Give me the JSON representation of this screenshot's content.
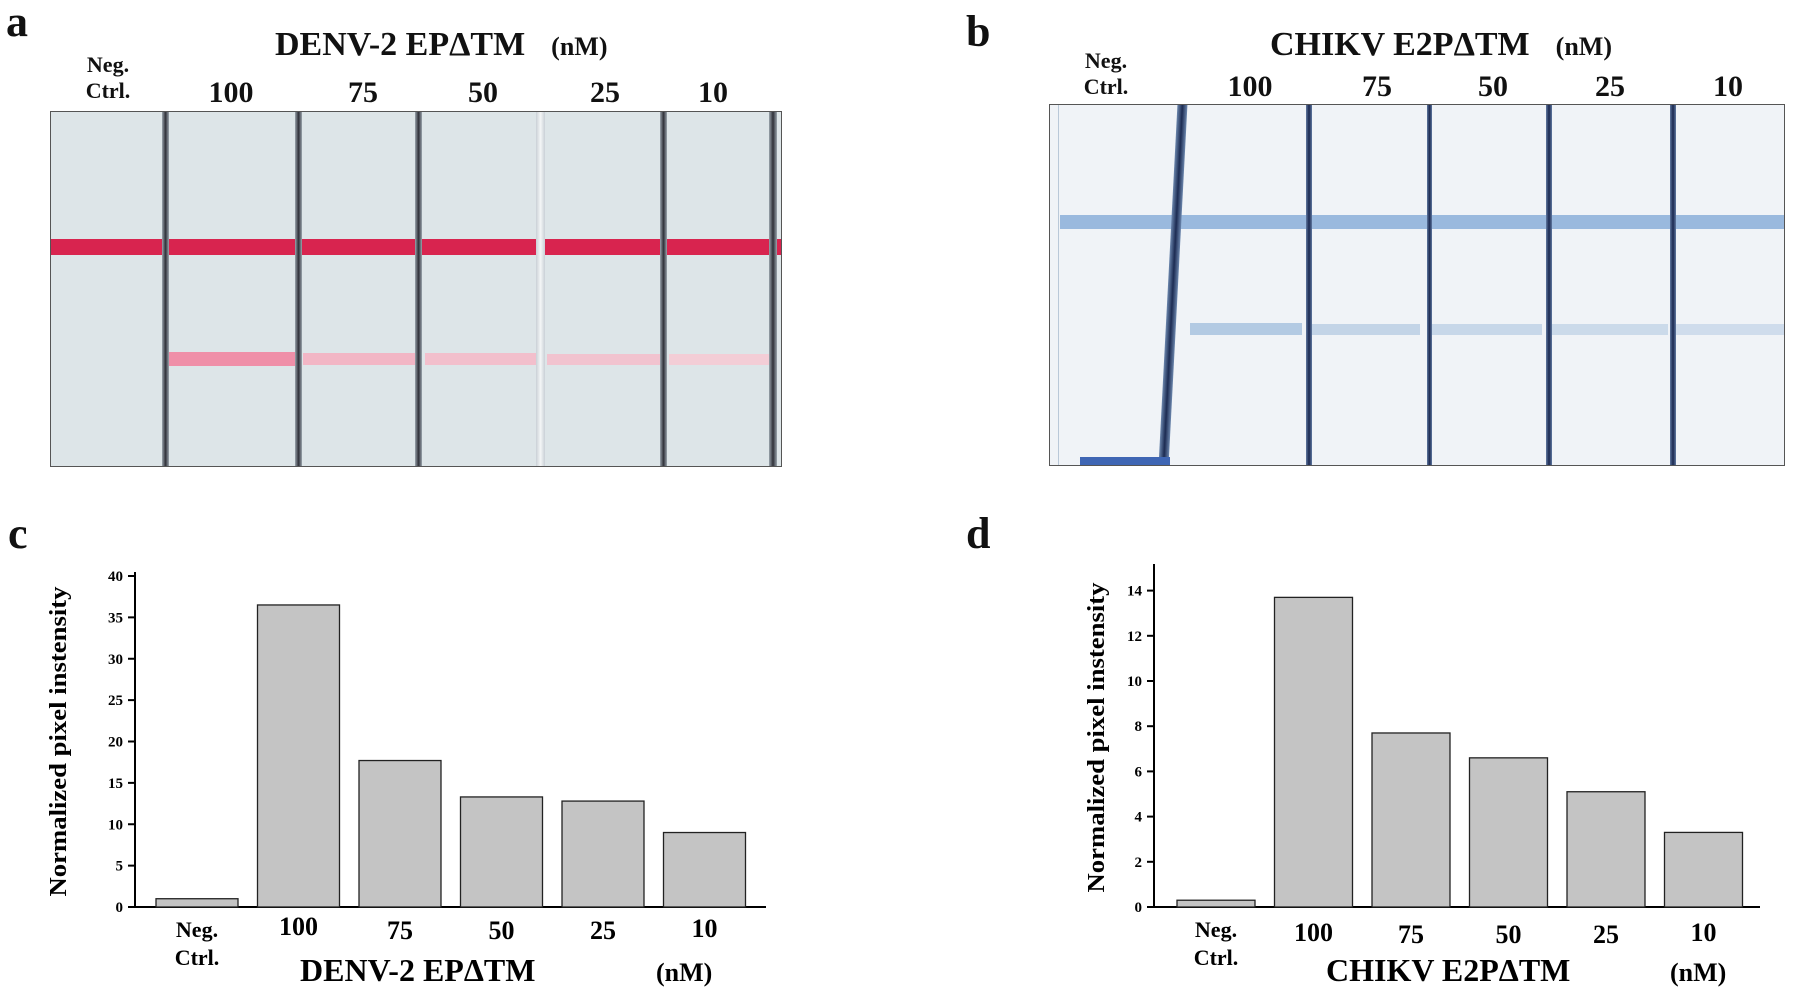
{
  "panels": {
    "a": {
      "letter": "a",
      "title": "DENV-2 EPΔTM",
      "unit": "(nM)",
      "neg_ctrl": [
        "Neg.",
        "Ctrl."
      ],
      "lanes": [
        "100",
        "75",
        "50",
        "25",
        "10"
      ],
      "control_band_color": "#d8244f",
      "test_band_color": "#ee9bb0",
      "strip_color": "#dde5e8"
    },
    "b": {
      "letter": "b",
      "title": "CHIKV E2PΔTM",
      "unit": "(nM)",
      "neg_ctrl": [
        "Neg.",
        "Ctrl."
      ],
      "lanes": [
        "100",
        "75",
        "50",
        "25",
        "10"
      ],
      "control_band_color": "#8fb4dc",
      "test_band_color": "#b9cfe6",
      "strip_color": "#f0f3f7"
    },
    "c": {
      "letter": "c"
    },
    "d": {
      "letter": "d"
    }
  },
  "chart_data": [
    {
      "type": "bar",
      "panel": "c",
      "categories": [
        "Neg.\nCtrl.",
        "100",
        "75",
        "50",
        "25",
        "10"
      ],
      "values": [
        1.0,
        36.5,
        17.7,
        13.3,
        12.8,
        9.0
      ],
      "ylabel": "Normalized pixel instensity",
      "xlabel": "DENV-2 EPΔTM",
      "xlabel_unit": "(nM)",
      "ylim": [
        0,
        40
      ],
      "yticks": [
        0,
        5,
        10,
        15,
        20,
        25,
        30,
        35,
        40
      ],
      "bar_color": "#c4c4c4",
      "grid": false
    },
    {
      "type": "bar",
      "panel": "d",
      "categories": [
        "Neg.\nCtrl.",
        "100",
        "75",
        "50",
        "25",
        "10"
      ],
      "values": [
        0.3,
        13.7,
        7.7,
        6.6,
        5.1,
        3.3
      ],
      "ylabel": "Normalized pixel instensity",
      "xlabel": "CHIKV E2PΔTM",
      "xlabel_unit": "(nM)",
      "ylim": [
        0,
        15
      ],
      "yticks": [
        0,
        2,
        4,
        6,
        8,
        10,
        12,
        14
      ],
      "bar_color": "#c4c4c4",
      "grid": false
    }
  ]
}
